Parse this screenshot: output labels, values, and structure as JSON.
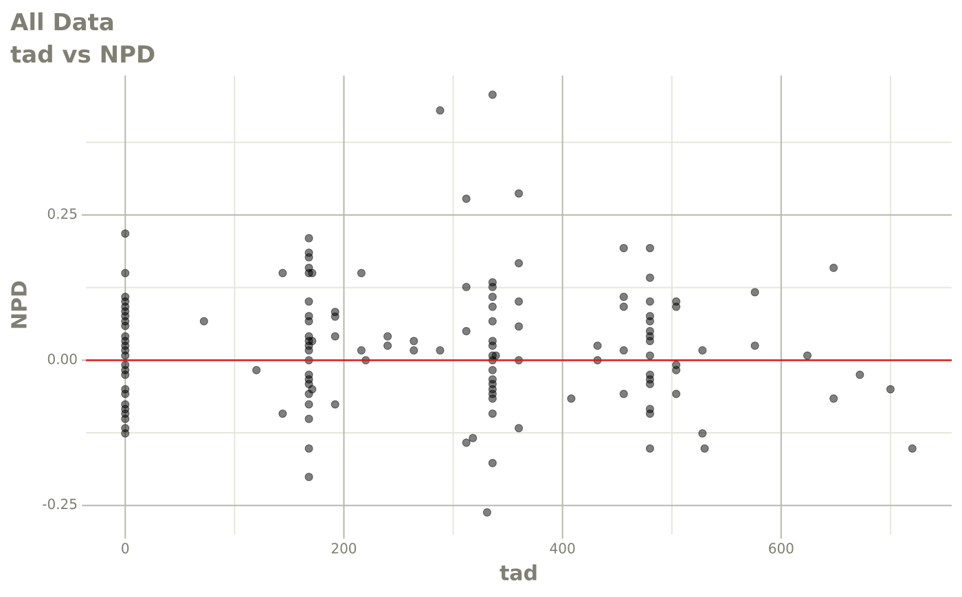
{
  "chart_data": {
    "type": "scatter",
    "title": "All Data",
    "subtitle": "tad vs NPD",
    "x_label": "tad",
    "y_label": "NPD",
    "xlim": [
      -36,
      756
    ],
    "ylim": [
      -0.3,
      0.49
    ],
    "xticks": [
      0,
      200,
      400,
      600
    ],
    "yticks": [
      {
        "value": -0.25,
        "label": "-0.25"
      },
      {
        "value": 0,
        "label": "0.00"
      },
      {
        "value": 0.25,
        "label": "0.25"
      }
    ],
    "x_minor_ticks": [
      100,
      300,
      500,
      700
    ],
    "y_minor_ticks": [
      -0.125,
      0.125,
      0.375
    ],
    "hline": 0,
    "hline_color": "#d7191c",
    "grid": true,
    "point_color": "#000000",
    "point_alpha": 0.5,
    "series": [
      {
        "name": "NPD",
        "x": [
          0,
          0,
          0,
          0,
          0,
          0,
          0,
          0,
          0,
          0,
          0,
          0,
          0,
          0,
          0,
          0,
          0,
          0,
          0,
          0,
          0,
          0,
          0,
          0,
          0,
          72,
          120,
          144,
          144,
          168,
          168,
          168,
          168,
          168,
          168,
          168,
          168,
          168,
          168,
          168,
          168,
          168,
          168,
          168,
          168,
          168,
          168,
          168,
          168,
          168,
          171,
          171,
          171,
          192,
          192,
          192,
          192,
          216,
          216,
          220,
          240,
          240,
          264,
          264,
          288,
          288,
          312,
          312,
          312,
          312,
          318,
          331,
          336,
          336,
          336,
          336,
          336,
          336,
          336,
          336,
          336,
          336,
          336,
          336,
          336,
          336,
          336,
          336,
          336,
          336,
          339,
          360,
          360,
          360,
          360,
          360,
          360,
          408,
          432,
          432,
          456,
          456,
          456,
          456,
          456,
          480,
          480,
          480,
          480,
          480,
          480,
          480,
          480,
          480,
          480,
          480,
          480,
          480,
          480,
          480,
          504,
          504,
          504,
          504,
          504,
          528,
          528,
          530,
          576,
          576,
          624,
          648,
          648,
          672,
          700,
          720
        ],
        "values": [
          0.218,
          0.15,
          0.109,
          0.101,
          0.092,
          0.084,
          0.076,
          0.067,
          0.059,
          0.041,
          0.033,
          0.025,
          0.017,
          0.008,
          -0.008,
          -0.017,
          -0.025,
          -0.05,
          -0.058,
          -0.076,
          -0.084,
          -0.092,
          -0.101,
          -0.117,
          -0.126,
          0.067,
          -0.017,
          0.15,
          -0.092,
          0.21,
          0.185,
          0.177,
          0.159,
          0.15,
          0.101,
          0.076,
          0.067,
          0.041,
          0.033,
          0.025,
          0.017,
          0,
          -0.025,
          -0.033,
          -0.041,
          -0.058,
          -0.076,
          -0.101,
          -0.152,
          -0.201,
          0.15,
          0.033,
          -0.05,
          0.083,
          0.075,
          0.041,
          -0.076,
          0.15,
          0.017,
          0,
          0.041,
          0.025,
          0.033,
          0.017,
          0.43,
          0.017,
          0.278,
          0.126,
          0.05,
          -0.142,
          -0.134,
          -0.262,
          0.457,
          0.134,
          0.126,
          0.109,
          0.092,
          0.067,
          0.033,
          0.025,
          0.008,
          0,
          -0.017,
          -0.033,
          -0.041,
          -0.05,
          -0.058,
          -0.066,
          -0.092,
          -0.177,
          0.008,
          0.287,
          0.167,
          0.101,
          0.058,
          0,
          -0.117,
          -0.066,
          0.025,
          0,
          0.193,
          0.109,
          0.092,
          0.017,
          -0.058,
          0.193,
          0.142,
          0.101,
          0.076,
          0.067,
          0.05,
          0.041,
          0.033,
          0.008,
          -0.025,
          -0.033,
          -0.041,
          -0.084,
          -0.092,
          -0.152,
          0.101,
          0.092,
          -0.008,
          -0.017,
          -0.058,
          0.017,
          -0.126,
          -0.152,
          0.117,
          0.025,
          0.008,
          0.159,
          -0.066,
          -0.025,
          -0.05,
          -0.152
        ]
      }
    ]
  }
}
